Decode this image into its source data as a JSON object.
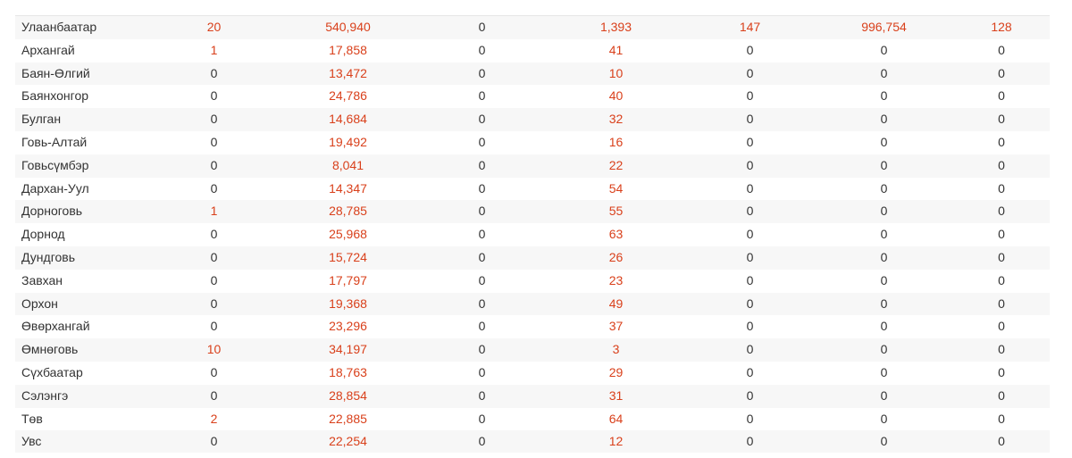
{
  "colors": {
    "accent_red": "#d9401b",
    "text": "#333333",
    "row_stripe": "#f7f7f7"
  },
  "rows": [
    {
      "name": "Улаанбаатар",
      "c1": "20",
      "c2": "540,940",
      "c3": "0",
      "c4": "1,393",
      "c5": "147",
      "c6": "996,754",
      "c7": "128"
    },
    {
      "name": "Архангай",
      "c1": "1",
      "c2": "17,858",
      "c3": "0",
      "c4": "41",
      "c5": "0",
      "c6": "0",
      "c7": "0"
    },
    {
      "name": "Баян-Өлгий",
      "c1": "0",
      "c2": "13,472",
      "c3": "0",
      "c4": "10",
      "c5": "0",
      "c6": "0",
      "c7": "0"
    },
    {
      "name": "Баянхонгор",
      "c1": "0",
      "c2": "24,786",
      "c3": "0",
      "c4": "40",
      "c5": "0",
      "c6": "0",
      "c7": "0"
    },
    {
      "name": "Булган",
      "c1": "0",
      "c2": "14,684",
      "c3": "0",
      "c4": "32",
      "c5": "0",
      "c6": "0",
      "c7": "0"
    },
    {
      "name": "Говь-Алтай",
      "c1": "0",
      "c2": "19,492",
      "c3": "0",
      "c4": "16",
      "c5": "0",
      "c6": "0",
      "c7": "0"
    },
    {
      "name": "Говьсүмбэр",
      "c1": "0",
      "c2": "8,041",
      "c3": "0",
      "c4": "22",
      "c5": "0",
      "c6": "0",
      "c7": "0"
    },
    {
      "name": "Дархан-Уул",
      "c1": "0",
      "c2": "14,347",
      "c3": "0",
      "c4": "54",
      "c5": "0",
      "c6": "0",
      "c7": "0"
    },
    {
      "name": "Дорноговь",
      "c1": "1",
      "c2": "28,785",
      "c3": "0",
      "c4": "55",
      "c5": "0",
      "c6": "0",
      "c7": "0"
    },
    {
      "name": "Дорнод",
      "c1": "0",
      "c2": "25,968",
      "c3": "0",
      "c4": "63",
      "c5": "0",
      "c6": "0",
      "c7": "0"
    },
    {
      "name": "Дундговь",
      "c1": "0",
      "c2": "15,724",
      "c3": "0",
      "c4": "26",
      "c5": "0",
      "c6": "0",
      "c7": "0"
    },
    {
      "name": "Завхан",
      "c1": "0",
      "c2": "17,797",
      "c3": "0",
      "c4": "23",
      "c5": "0",
      "c6": "0",
      "c7": "0"
    },
    {
      "name": "Орхон",
      "c1": "0",
      "c2": "19,368",
      "c3": "0",
      "c4": "49",
      "c5": "0",
      "c6": "0",
      "c7": "0"
    },
    {
      "name": "Өвөрхангай",
      "c1": "0",
      "c2": "23,296",
      "c3": "0",
      "c4": "37",
      "c5": "0",
      "c6": "0",
      "c7": "0"
    },
    {
      "name": "Өмнөговь",
      "c1": "10",
      "c2": "34,197",
      "c3": "0",
      "c4": "3",
      "c5": "0",
      "c6": "0",
      "c7": "0"
    },
    {
      "name": "Сүхбаатар",
      "c1": "0",
      "c2": "18,763",
      "c3": "0",
      "c4": "29",
      "c5": "0",
      "c6": "0",
      "c7": "0"
    },
    {
      "name": "Сэлэнгэ",
      "c1": "0",
      "c2": "28,854",
      "c3": "0",
      "c4": "31",
      "c5": "0",
      "c6": "0",
      "c7": "0"
    },
    {
      "name": "Төв",
      "c1": "2",
      "c2": "22,885",
      "c3": "0",
      "c4": "64",
      "c5": "0",
      "c6": "0",
      "c7": "0"
    },
    {
      "name": "Увс",
      "c1": "0",
      "c2": "22,254",
      "c3": "0",
      "c4": "12",
      "c5": "0",
      "c6": "0",
      "c7": "0"
    }
  ]
}
